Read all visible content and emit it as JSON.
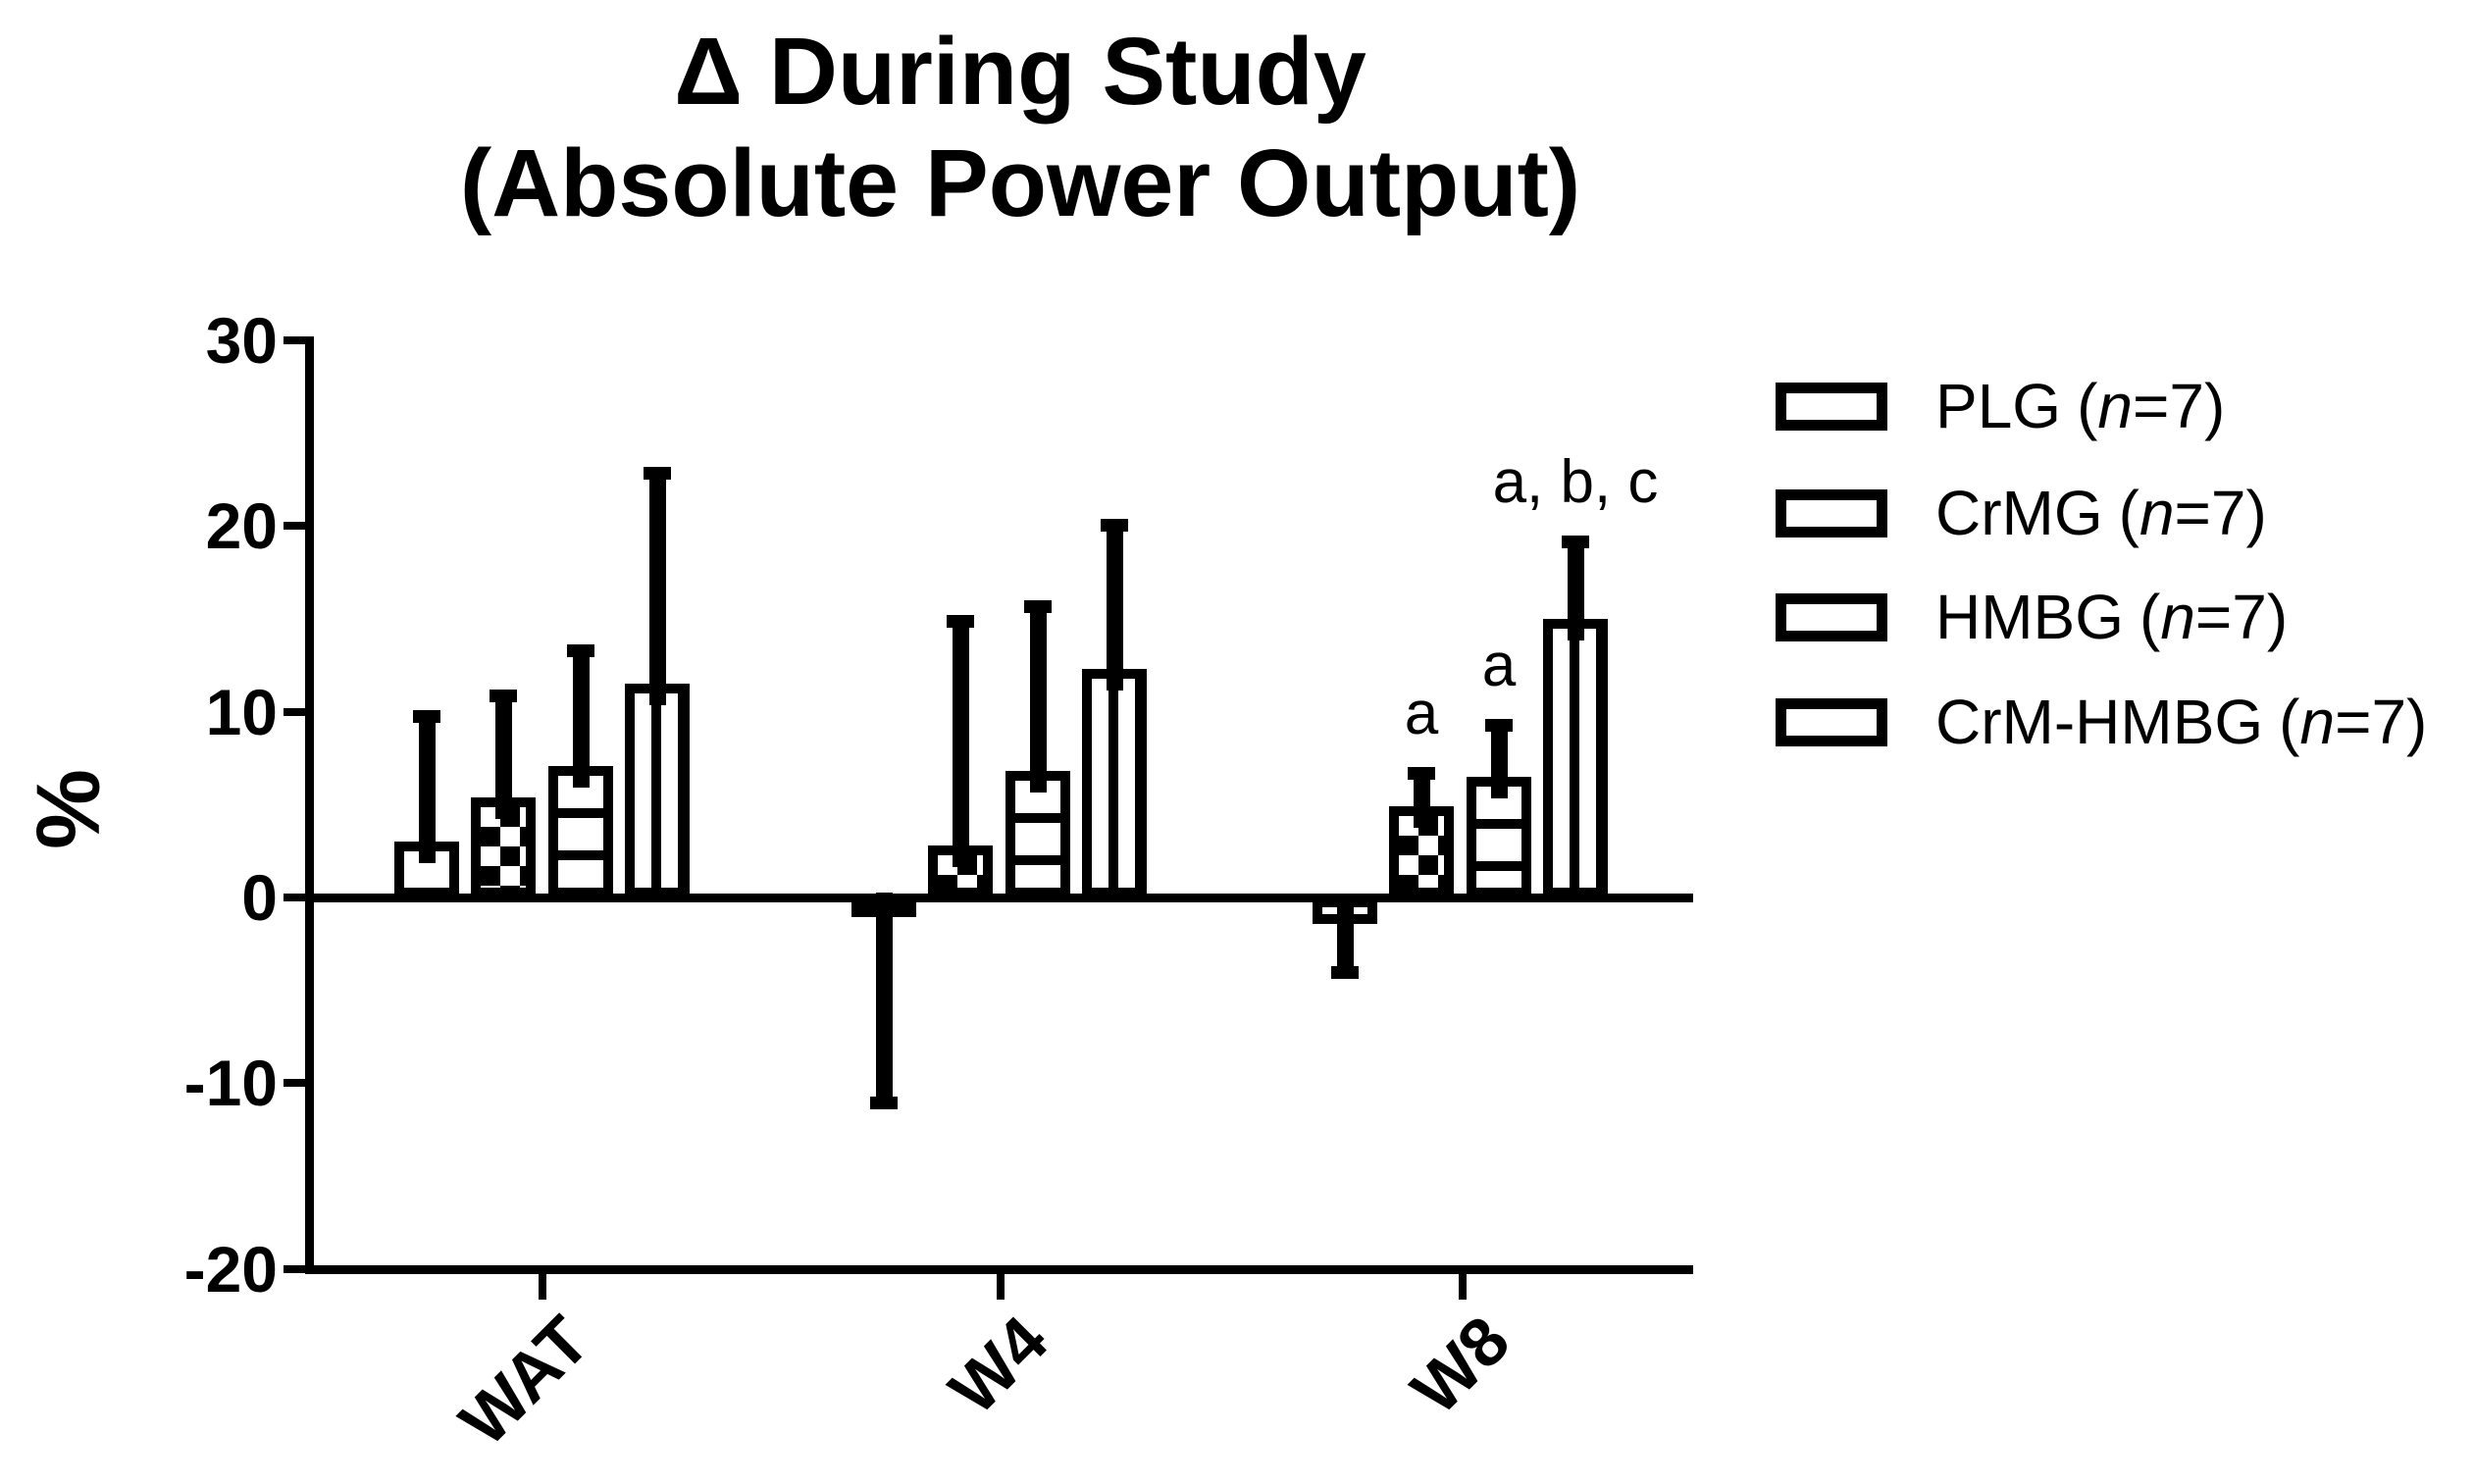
{
  "chart_data": {
    "type": "bar",
    "title_lines": [
      "Δ During Study",
      "(Absolute Power Output)"
    ],
    "ylabel": "%",
    "xlabel": "",
    "ylim": [
      -20,
      30
    ],
    "yticks": [
      30,
      20,
      10,
      0,
      -10,
      -20
    ],
    "grid": false,
    "legend_position": "right",
    "categories": [
      "WAT",
      "W4",
      "W8"
    ],
    "series": [
      {
        "name": "PLG",
        "n_suffix": "(n=7)",
        "pattern": "plain",
        "fill": "#ffffff",
        "values": [
          3.0,
          -0.9,
          -1.4
        ],
        "error_tips": [
          10.1,
          -11.4,
          -4.4
        ]
      },
      {
        "name": "CrMG",
        "n_suffix": "(n=7)",
        "pattern": "checker",
        "fill": "#ffffff",
        "values": [
          5.4,
          2.8,
          4.9
        ],
        "error_tips": [
          11.2,
          15.2,
          7.0
        ]
      },
      {
        "name": "HMBG",
        "n_suffix": "(n=7)",
        "pattern": "hstripe",
        "fill": "#ffffff",
        "values": [
          7.1,
          6.8,
          6.5
        ],
        "error_tips": [
          13.6,
          16.0,
          9.6
        ]
      },
      {
        "name": "CrM-HMBG",
        "n_suffix": "(n=7)",
        "pattern": "vstripe",
        "fill": "#ffffff",
        "values": [
          11.5,
          12.3,
          15.0
        ],
        "error_tips": [
          23.2,
          20.4,
          19.5
        ]
      }
    ],
    "annotations": [
      {
        "text": "a",
        "category": "W8",
        "series": "CrMG"
      },
      {
        "text": "a",
        "category": "W8",
        "series": "HMBG"
      },
      {
        "text": "a, b, c",
        "category": "W8",
        "series": "CrM-HMBG"
      }
    ],
    "colors": {
      "foreground": "#000000",
      "background": "#ffffff"
    }
  }
}
